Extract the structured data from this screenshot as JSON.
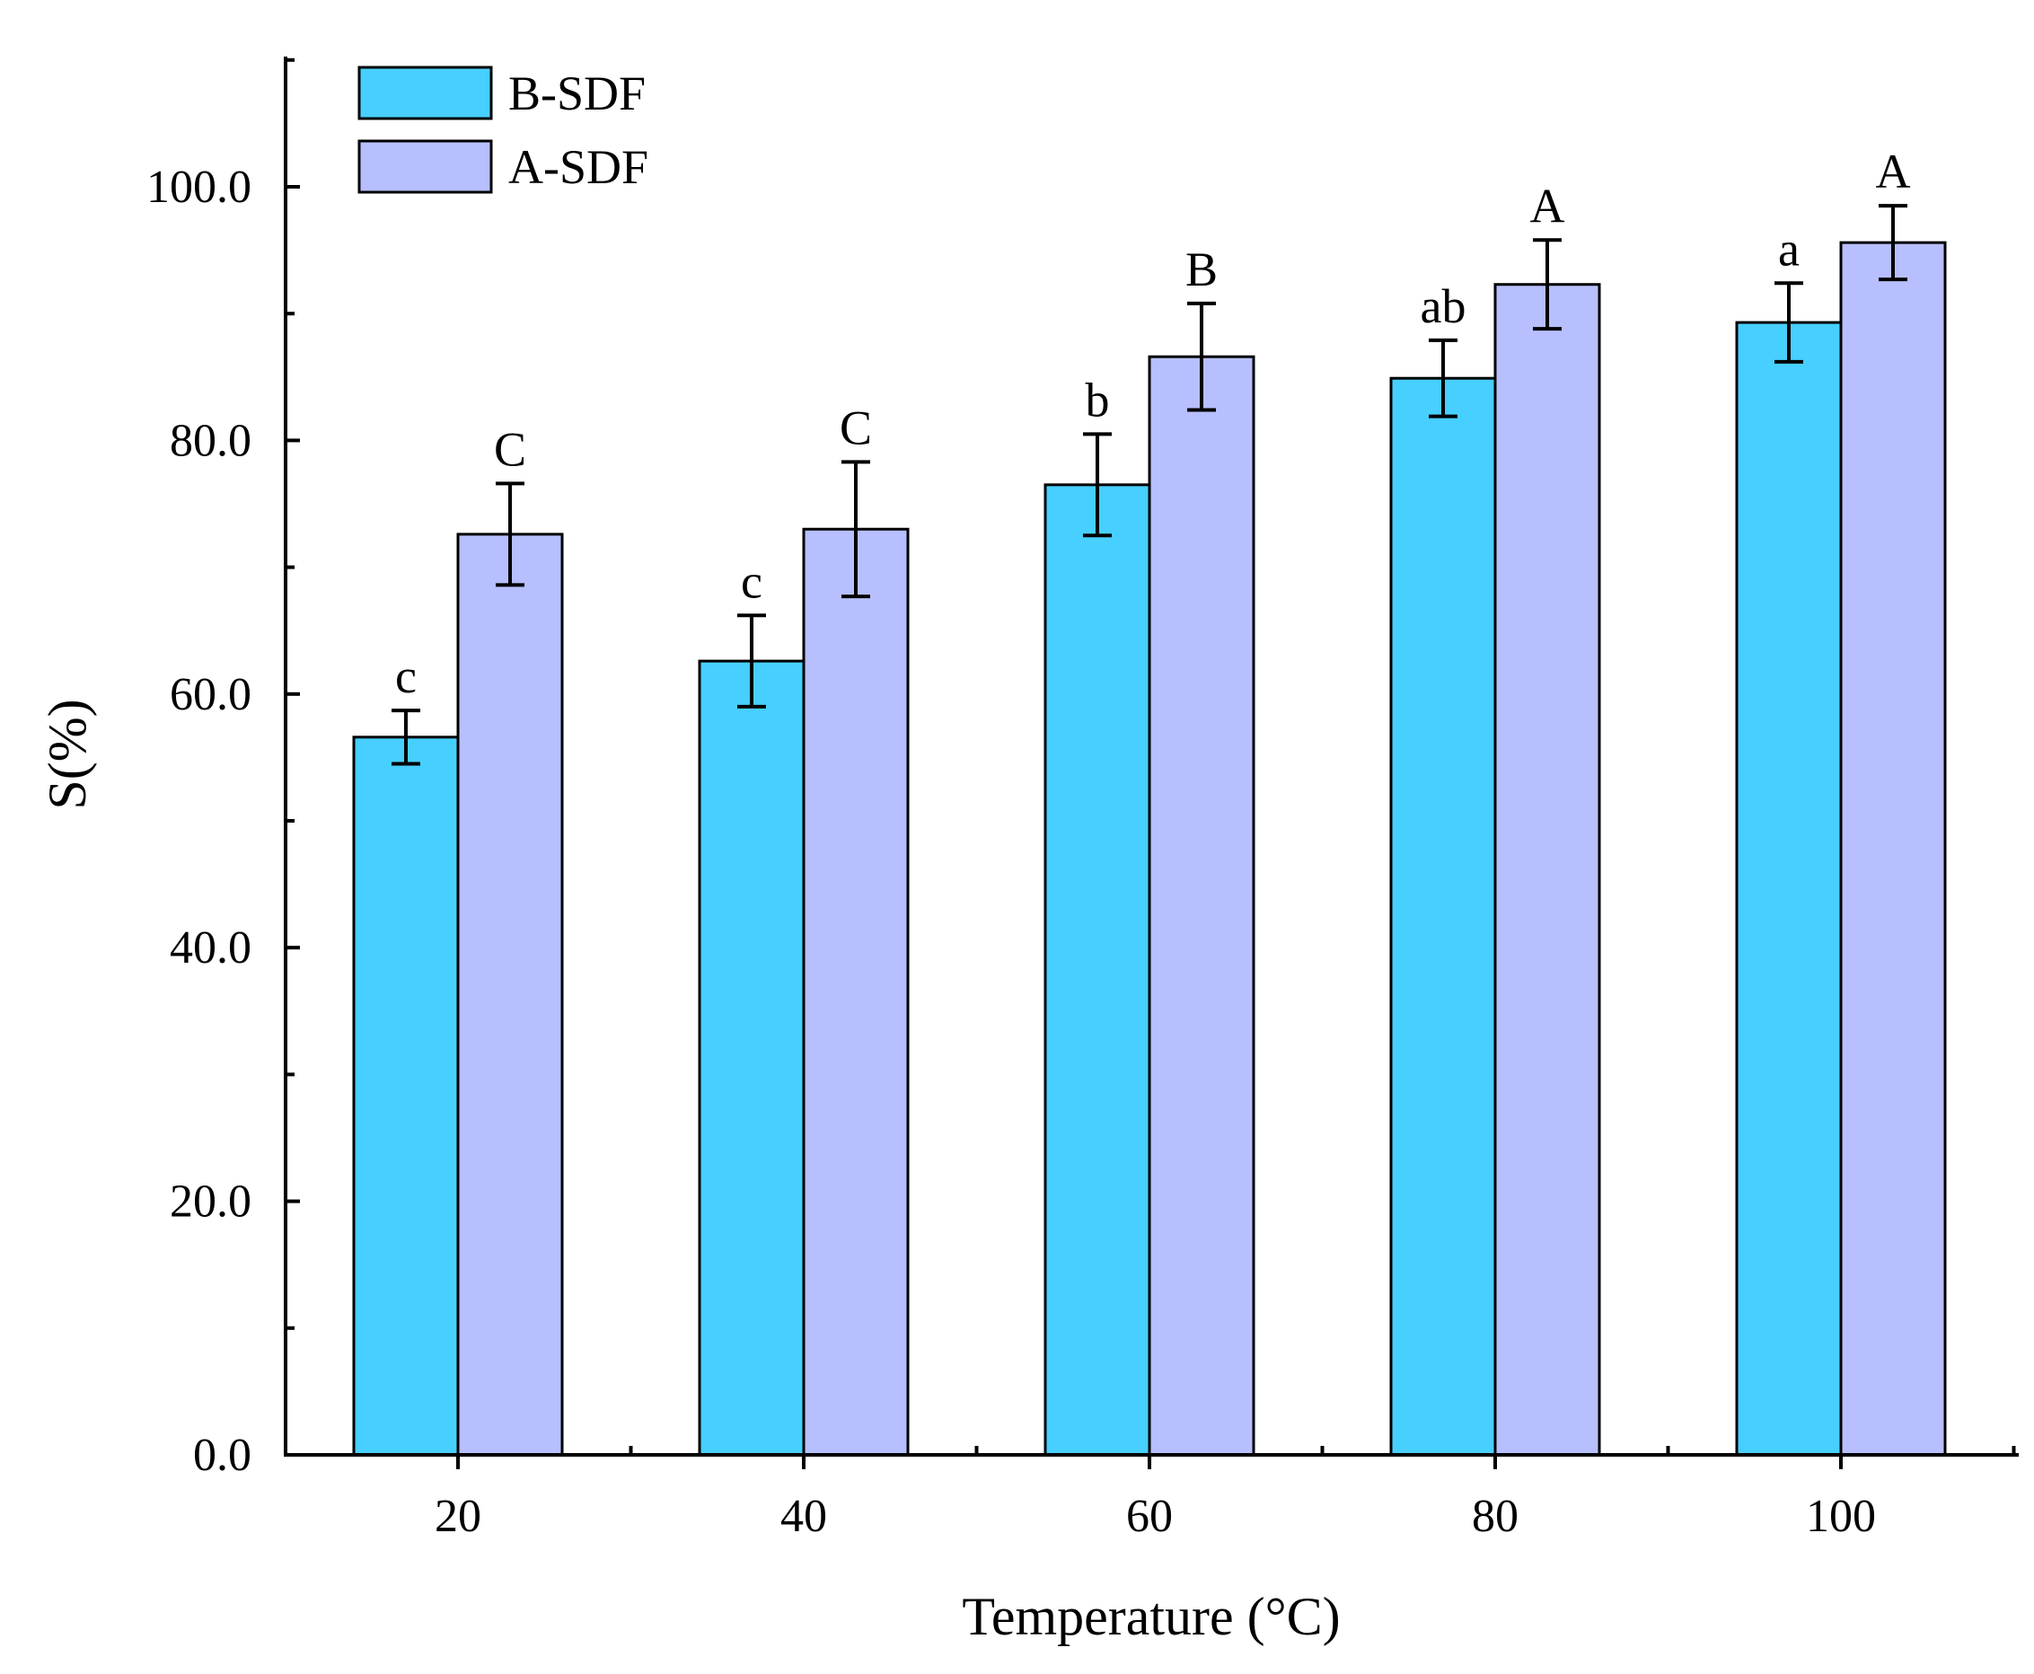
{
  "chart_data": {
    "type": "bar",
    "title": "",
    "xlabel": "Temperature (°C)",
    "ylabel": "S(%)",
    "categories": [
      "20",
      "40",
      "60",
      "80",
      "100"
    ],
    "ylim": [
      0,
      110
    ],
    "yticks": [
      "0.0",
      "20.0",
      "40.0",
      "60.0",
      "80.0",
      "100.0"
    ],
    "ytick_values": [
      0,
      20,
      40,
      60,
      80,
      100
    ],
    "legend_position": "top-left",
    "series": [
      {
        "name": "B-SDF",
        "color": "#47CFFF",
        "values": [
          56.6,
          62.6,
          76.5,
          84.9,
          89.3
        ],
        "errors": [
          2.1,
          3.6,
          4.0,
          3.0,
          3.1
        ],
        "labels": [
          "c",
          "c",
          "b",
          "ab",
          "a"
        ]
      },
      {
        "name": "A-SDF",
        "color": "#B7BFFF",
        "values": [
          72.6,
          73.0,
          86.6,
          92.3,
          95.6
        ],
        "errors": [
          4.0,
          5.3,
          4.2,
          3.5,
          2.9
        ],
        "labels": [
          "C",
          "C",
          "B",
          "A",
          "A"
        ]
      }
    ]
  }
}
